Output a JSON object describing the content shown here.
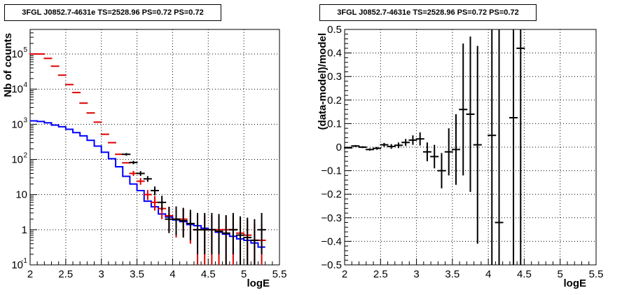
{
  "chart_data": [
    {
      "type": "line",
      "title": "3FGL J0852.7-4631e TS=2528.96 PS=0.72 PS=0.72",
      "xlabel": "logE",
      "ylabel": "Nb of counts",
      "xlim": [
        2,
        5.5
      ],
      "ylim": [
        0.1,
        500000
      ],
      "y_scale": "log",
      "grid": true,
      "x_ticks": [
        "2",
        "2.5",
        "3",
        "3.5",
        "4",
        "4.5",
        "5",
        "5.5"
      ],
      "y_ticks": [
        {
          "value": 0.1,
          "label": "10",
          "exp": "-1"
        },
        {
          "value": 1,
          "label": "1",
          "exp": ""
        },
        {
          "value": 10,
          "label": "10",
          "exp": ""
        },
        {
          "value": 100,
          "label": "10",
          "exp": "2"
        },
        {
          "value": 1000,
          "label": "10",
          "exp": "3"
        },
        {
          "value": 10000,
          "label": "10",
          "exp": "4"
        },
        {
          "value": 100000,
          "label": "10",
          "exp": "5"
        }
      ],
      "colors": {
        "model": "#0000ff",
        "predicted": "#dd0000",
        "data": "#000000"
      },
      "series": [
        {
          "color": "#0000ff",
          "kind": "step",
          "bin_edges": [
            2.0,
            2.1,
            2.2,
            2.3,
            2.4,
            2.5,
            2.6,
            2.7,
            2.8,
            2.9,
            3.0,
            3.1,
            3.2,
            3.3,
            3.4,
            3.5,
            3.6,
            3.7,
            3.8,
            3.9,
            4.0,
            4.1,
            4.2,
            4.3,
            4.4,
            4.5,
            4.6,
            4.7,
            4.8,
            4.9,
            5.0,
            5.1,
            5.2,
            5.3
          ],
          "values": [
            1250,
            1200,
            1100,
            950,
            850,
            720,
            580,
            470,
            350,
            240,
            160,
            105,
            62,
            33,
            20,
            13,
            6.5,
            4.5,
            2.8,
            2.3,
            1.9,
            1.7,
            1.4,
            1.3,
            1.1,
            1.0,
            0.85,
            0.75,
            0.65,
            0.55,
            0.5,
            0.42,
            0.32
          ]
        },
        {
          "color": "#dd0000",
          "kind": "errorbar",
          "x": [
            2.05,
            2.15,
            2.25,
            2.35,
            2.45,
            2.55,
            2.65,
            2.75,
            2.85,
            2.95,
            3.05,
            3.15,
            3.25,
            3.35,
            3.45,
            3.55,
            3.65,
            3.75,
            3.85,
            3.95,
            4.05,
            4.15,
            4.25,
            4.35,
            4.45,
            4.55,
            4.65,
            4.75,
            4.85,
            4.95,
            5.05,
            5.15,
            5.25
          ],
          "y": [
            100000,
            100000,
            75000,
            45000,
            25000,
            13500,
            8000,
            4000,
            2100,
            1150,
            520,
            300,
            140,
            80,
            40,
            24,
            10,
            6,
            4,
            2.5,
            2,
            2,
            1.5,
            1,
            1,
            1,
            1,
            1,
            1,
            0.8,
            0.7,
            0.5,
            0.5
          ],
          "yerr_low": [
            0,
            0,
            0,
            0,
            0,
            0,
            0,
            0,
            0,
            0,
            0,
            0,
            0,
            0,
            6,
            5,
            3,
            2.5,
            2,
            1.6,
            1.4,
            1.4,
            1.1,
            0.9,
            0.9,
            0.9,
            0.9,
            0.9,
            0.9,
            0.72,
            0.64,
            0.46,
            0.46
          ],
          "yerr_high": [
            0,
            0,
            0,
            0,
            0,
            0,
            0,
            0,
            0,
            0,
            0,
            0,
            0,
            0,
            7,
            5.5,
            3.5,
            3,
            2.5,
            2,
            2,
            2,
            1.7,
            1.5,
            1.5,
            1.5,
            1.5,
            1.5,
            1.5,
            1.3,
            1.2,
            1,
            1
          ]
        },
        {
          "color": "#000000",
          "kind": "errorbar",
          "x": [
            3.35,
            3.45,
            3.55,
            3.65,
            3.75,
            3.85,
            3.95,
            4.05,
            4.15,
            4.25,
            4.35,
            4.45,
            4.55,
            4.65,
            4.75,
            4.85,
            4.95,
            5.05,
            5.15,
            5.25
          ],
          "y": [
            140,
            82,
            40,
            28,
            13,
            6,
            2,
            2,
            1.8,
            1.5,
            1,
            1,
            1,
            0.9,
            0.8,
            1,
            0.7,
            0.6,
            0.5,
            1
          ],
          "yerr_low": [
            12,
            9,
            6,
            5,
            3.5,
            2.4,
            1.2,
            1.3,
            1.2,
            1,
            0.8,
            0.8,
            0.8,
            0.7,
            0.7,
            0.8,
            0.6,
            0.5,
            0.4,
            0.8
          ],
          "yerr_high": [
            12,
            9,
            6.5,
            5.5,
            4,
            3.2,
            2.5,
            2.6,
            2.4,
            2.2,
            2,
            2,
            2,
            1.9,
            1.8,
            2,
            1.7,
            1.6,
            1.5,
            2
          ]
        }
      ]
    },
    {
      "type": "scatter",
      "title": "3FGL J0852.7-4631e TS=2528.96 PS=0.72 PS=0.72",
      "xlabel": "logE",
      "ylabel": "(data-model)/model",
      "xlim": [
        2,
        5.5
      ],
      "ylim": [
        -0.5,
        0.5
      ],
      "grid": true,
      "x_ticks": [
        "2",
        "2.5",
        "3",
        "3.5",
        "4",
        "4.5",
        "5",
        "5.5"
      ],
      "y_ticks": [
        "−0.5",
        "−0.4",
        "−0.3",
        "−0.2",
        "−0.1",
        "0",
        "0.1",
        "0.2",
        "0.3",
        "0.4",
        "0.5"
      ],
      "y_tick_values": [
        -0.5,
        -0.4,
        -0.3,
        -0.2,
        -0.1,
        0,
        0.1,
        0.2,
        0.3,
        0.4,
        0.5
      ],
      "series": [
        {
          "color": "#000000",
          "kind": "errorbar",
          "x": [
            2.05,
            2.15,
            2.25,
            2.35,
            2.45,
            2.55,
            2.65,
            2.75,
            2.85,
            2.95,
            3.05,
            3.15,
            3.25,
            3.35,
            3.45,
            3.55,
            3.65,
            3.75,
            3.85,
            4.05,
            4.15,
            4.35,
            4.45
          ],
          "y": [
            -0.003,
            0.005,
            0.0,
            -0.01,
            -0.005,
            0.01,
            0.003,
            0.008,
            0.02,
            0.03,
            0.035,
            -0.02,
            -0.04,
            -0.1,
            -0.02,
            -0.01,
            0.16,
            0.14,
            0.01,
            0.05,
            -0.32,
            0.125,
            0.42
          ],
          "yerr": [
            0.003,
            0.004,
            0.004,
            0.005,
            0.006,
            0.008,
            0.01,
            0.012,
            0.015,
            0.02,
            0.028,
            0.04,
            0.05,
            0.075,
            0.1,
            0.15,
            0.28,
            0.33,
            0.42,
            0.6,
            0.85,
            0.9,
            1.1
          ]
        }
      ]
    }
  ]
}
